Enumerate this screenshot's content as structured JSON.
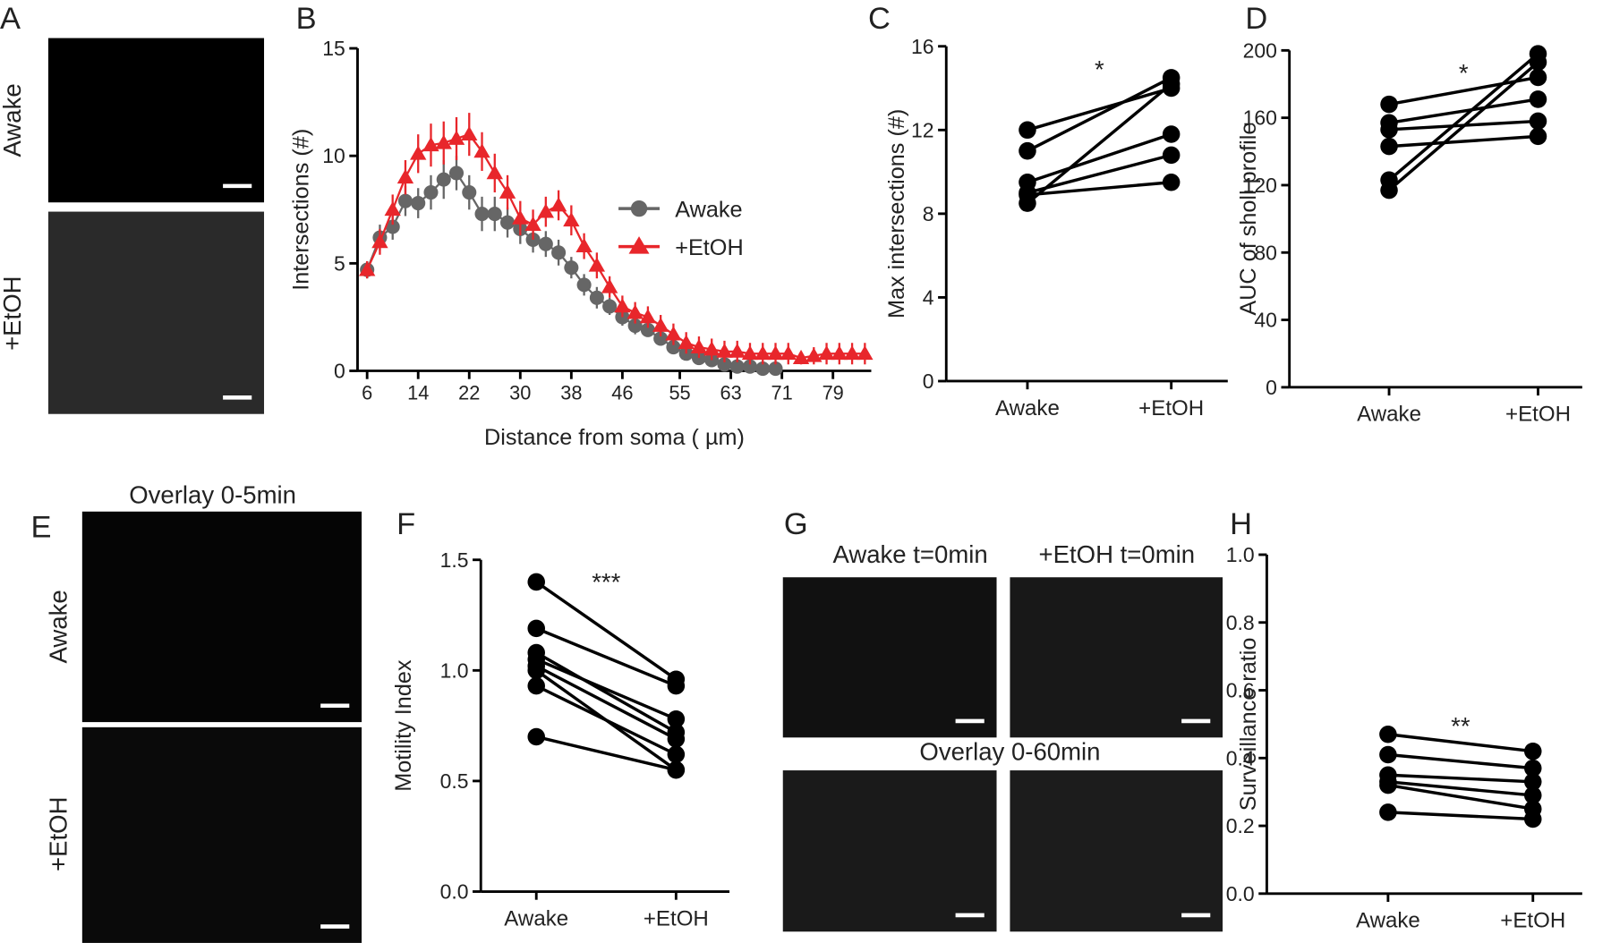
{
  "image_panels": [
    {
      "panel": "A",
      "rows": [
        "Awake",
        "+EtOH"
      ]
    },
    {
      "panel": "E",
      "title": "Overlay 0-5min",
      "rows": [
        "Awake",
        "+EtOH"
      ]
    },
    {
      "panel": "G",
      "columns": [
        "Awake t=0min",
        "+EtOH t=0min"
      ],
      "subtitle": "Overlay 0-60min"
    }
  ],
  "chart_data": [
    {
      "type": "line",
      "panel": "B",
      "x_label": "Distance from soma ( µm)",
      "y_label": "Intersections (#)",
      "xlim": [
        4.5,
        85
      ],
      "xticks": [
        6,
        14,
        22,
        30,
        38,
        46,
        55,
        63,
        71,
        79
      ],
      "ylim": [
        0,
        15
      ],
      "yticks": [
        0,
        5,
        10,
        15
      ],
      "series": [
        {
          "name": "Awake",
          "color": "#666666",
          "marker": "circle",
          "x": [
            6,
            8,
            10,
            12,
            14,
            16,
            18,
            20,
            22,
            24,
            26,
            28,
            30,
            32,
            34,
            36,
            38,
            40,
            42,
            44,
            46,
            48,
            50,
            52,
            54,
            56,
            58,
            60,
            62,
            64,
            66,
            68,
            70
          ],
          "values": [
            4.7,
            6.2,
            6.7,
            7.9,
            7.8,
            8.3,
            8.9,
            9.2,
            8.3,
            7.3,
            7.3,
            6.9,
            6.6,
            6.1,
            5.9,
            5.5,
            4.8,
            4.0,
            3.4,
            3.0,
            2.5,
            2.1,
            1.9,
            1.5,
            1.1,
            0.8,
            0.6,
            0.5,
            0.3,
            0.2,
            0.2,
            0.1,
            0.1
          ],
          "errors": [
            0.4,
            0.6,
            0.6,
            0.7,
            0.7,
            0.8,
            0.9,
            0.8,
            0.8,
            0.8,
            0.8,
            0.7,
            0.7,
            0.6,
            0.6,
            0.6,
            0.5,
            0.5,
            0.5,
            0.4,
            0.4,
            0.4,
            0.3,
            0.3,
            0.3,
            0.3,
            0.2,
            0.2,
            0.2,
            0.2,
            0.1,
            0.1,
            0.1
          ]
        },
        {
          "name": "+EtOH",
          "color": "#e8262b",
          "marker": "triangle",
          "x": [
            6,
            8,
            10,
            12,
            14,
            16,
            18,
            20,
            22,
            24,
            26,
            28,
            30,
            32,
            34,
            36,
            38,
            40,
            42,
            44,
            46,
            48,
            50,
            52,
            54,
            56,
            58,
            60,
            62,
            64,
            66,
            68,
            70,
            72,
            74,
            76,
            78,
            80,
            82,
            84
          ],
          "values": [
            4.7,
            6.0,
            7.5,
            9.0,
            10.1,
            10.5,
            10.6,
            10.8,
            11.0,
            10.2,
            9.2,
            8.3,
            7.1,
            6.8,
            7.4,
            7.7,
            7.0,
            5.8,
            4.9,
            3.9,
            3.0,
            2.7,
            2.5,
            2.1,
            1.7,
            1.3,
            1.1,
            1.0,
            0.9,
            0.9,
            0.8,
            0.8,
            0.8,
            0.8,
            0.6,
            0.7,
            0.8,
            0.8,
            0.8,
            0.8
          ],
          "errors": [
            0.4,
            0.6,
            0.7,
            0.8,
            0.9,
            1.0,
            1.0,
            1.0,
            1.0,
            0.9,
            0.9,
            0.8,
            0.8,
            0.7,
            0.7,
            0.7,
            0.7,
            0.6,
            0.6,
            0.5,
            0.5,
            0.5,
            0.5,
            0.5,
            0.5,
            0.5,
            0.5,
            0.5,
            0.5,
            0.5,
            0.5,
            0.5,
            0.5,
            0.5,
            0.3,
            0.4,
            0.5,
            0.5,
            0.5,
            0.5
          ]
        }
      ],
      "legend": "center-right"
    },
    {
      "type": "paired",
      "panel": "C",
      "y_label": "Max intersections (#)",
      "categories": [
        "Awake",
        "+EtOH"
      ],
      "annotation": "*",
      "ylim": [
        0,
        16
      ],
      "yticks": [
        0,
        4,
        8,
        12,
        16
      ],
      "color": "#000000",
      "series": [
        {
          "values": [
            12.0,
            14.0
          ]
        },
        {
          "values": [
            11.0,
            14.5
          ]
        },
        {
          "values": [
            9.5,
            11.8
          ]
        },
        {
          "values": [
            9.0,
            10.8
          ]
        },
        {
          "values": [
            8.9,
            9.5
          ]
        },
        {
          "values": [
            8.5,
            14.2
          ]
        }
      ]
    },
    {
      "type": "paired",
      "panel": "D",
      "y_label": "AUC of sholl profile",
      "categories": [
        "Awake",
        "+EtOH"
      ],
      "annotation": "*",
      "ylim": [
        0,
        200
      ],
      "yticks": [
        0,
        40,
        80,
        120,
        160,
        200
      ],
      "color": "#000000",
      "series": [
        {
          "values": [
            168,
            184
          ]
        },
        {
          "values": [
            157,
            171
          ]
        },
        {
          "values": [
            153,
            158
          ]
        },
        {
          "values": [
            143,
            149
          ]
        },
        {
          "values": [
            123,
            198
          ]
        },
        {
          "values": [
            117,
            193
          ]
        }
      ]
    },
    {
      "type": "paired",
      "panel": "F",
      "y_label": "Motility Index",
      "categories": [
        "Awake",
        "+EtOH"
      ],
      "annotation": "***",
      "ylim": [
        0,
        1.5
      ],
      "yticks": [
        {
          "value": 0,
          "label": "0.0"
        },
        0.5,
        {
          "value": 1,
          "label": "1.0"
        },
        1.5
      ],
      "color": "#000000",
      "series": [
        {
          "values": [
            1.4,
            0.96
          ]
        },
        {
          "values": [
            1.19,
            0.93
          ]
        },
        {
          "values": [
            1.08,
            0.72
          ]
        },
        {
          "values": [
            1.05,
            0.78
          ]
        },
        {
          "values": [
            1.02,
            0.69
          ]
        },
        {
          "values": [
            1.0,
            0.55
          ]
        },
        {
          "values": [
            0.93,
            0.62
          ]
        },
        {
          "values": [
            0.7,
            0.55
          ]
        }
      ]
    },
    {
      "type": "paired",
      "panel": "H",
      "y_label": "Surveillance ratio",
      "categories": [
        "Awake",
        "+EtOH"
      ],
      "annotation": "**",
      "ylim": [
        0,
        1
      ],
      "yticks": [
        {
          "value": 0,
          "label": "0.0"
        },
        0.2,
        0.4,
        0.6,
        0.8,
        {
          "value": 1,
          "label": "1.0"
        }
      ],
      "color": "#000000",
      "series": [
        {
          "values": [
            0.47,
            0.42
          ]
        },
        {
          "values": [
            0.41,
            0.37
          ]
        },
        {
          "values": [
            0.35,
            0.33
          ]
        },
        {
          "values": [
            0.33,
            0.29
          ]
        },
        {
          "values": [
            0.32,
            0.25
          ]
        },
        {
          "values": [
            0.24,
            0.22
          ]
        }
      ]
    }
  ]
}
